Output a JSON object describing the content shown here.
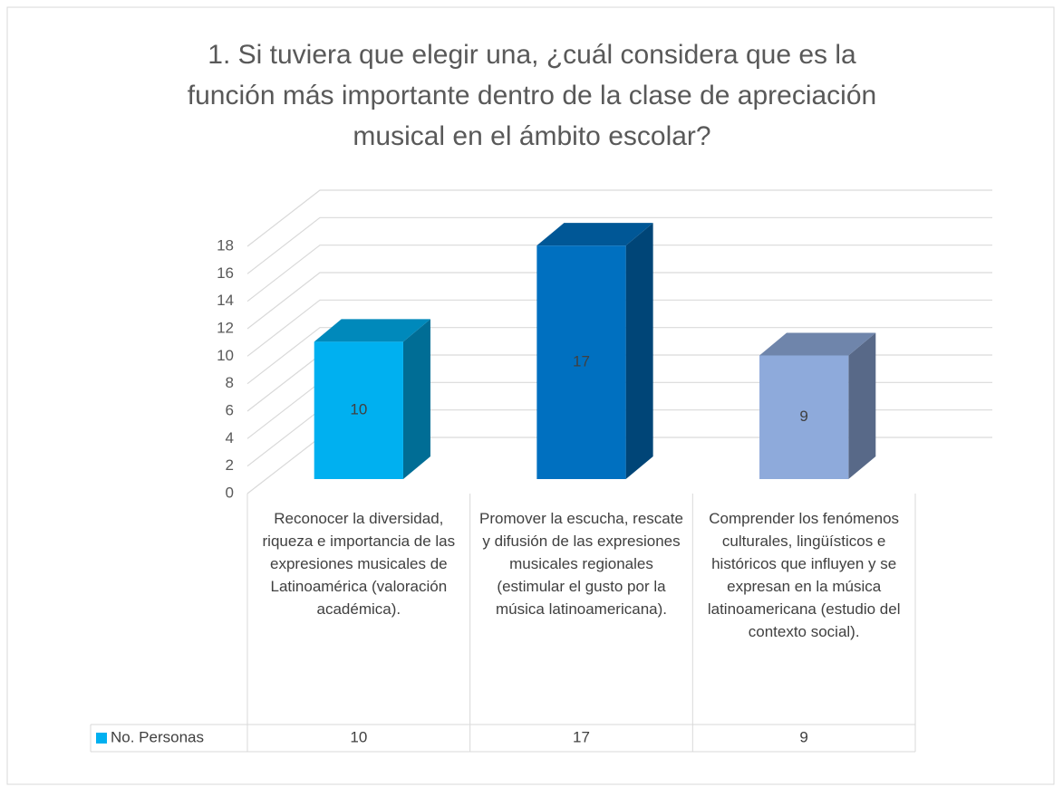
{
  "chart_data": {
    "type": "bar3d",
    "title": "1. Si tuviera que elegir una, ¿cuál considera que es la función más importante dentro de la clase de apreciación musical en el ámbito escolar?",
    "categories": [
      "Reconocer la diversidad, riqueza e importancia de las expresiones musicales de Latinoamérica (valoración académica).",
      "Promover la escucha, rescate y difusión de las expresiones musicales regionales (estimular el gusto por la música latinoamericana).",
      "Comprender los fenómenos culturales, lingüísticos e históricos que influyen y se expresan en la música latinoamericana (estudio del contexto social)."
    ],
    "series": [
      {
        "name": "No. Personas",
        "color": "#00b0f0",
        "colors": [
          "#00b0f0",
          "#0070c0",
          "#8eaadb"
        ],
        "values": [
          10,
          17,
          9
        ]
      }
    ],
    "ylim": [
      0,
      18
    ],
    "yticks": [
      0,
      2,
      4,
      6,
      8,
      10,
      12,
      14,
      16,
      18
    ],
    "grid": true,
    "data_table": true
  }
}
